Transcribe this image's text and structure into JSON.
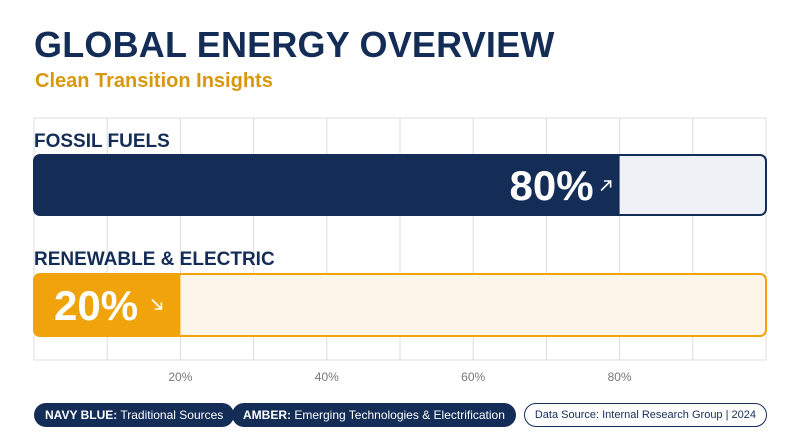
{
  "header": {
    "title": "GLOBAL ENERGY OVERVIEW",
    "subtitle": "Clean Transition Insights"
  },
  "colors": {
    "navy": "#142d57",
    "amber": "#f0a30a",
    "navy_track": "#eef2f7",
    "amber_track": "#fdf5e8",
    "grid": "#dcdcdc",
    "axis_text": "#777777"
  },
  "chart_data": {
    "type": "bar",
    "orientation": "horizontal",
    "categories": [
      "FOSSIL FUELS",
      "RENEWABLE & ELECTRIC"
    ],
    "values": [
      80,
      20
    ],
    "value_labels": [
      "80%",
      "20%"
    ],
    "trend_icons": [
      "arrow-up-right-icon",
      "arrow-down-right-icon"
    ],
    "xlim": [
      0,
      100
    ],
    "x_ticks": [
      20,
      40,
      60,
      80
    ],
    "x_tick_labels": [
      "20%",
      "40%",
      "60%",
      "80%"
    ],
    "grid": true
  },
  "legend": {
    "navy": {
      "key": "NAVY BLUE:",
      "text": " Traditional Sources"
    },
    "amber": {
      "key": "AMBER:",
      "text": " Emerging Technologies & Electrification"
    }
  },
  "source": "Data Source: Internal Research Group | 2024"
}
